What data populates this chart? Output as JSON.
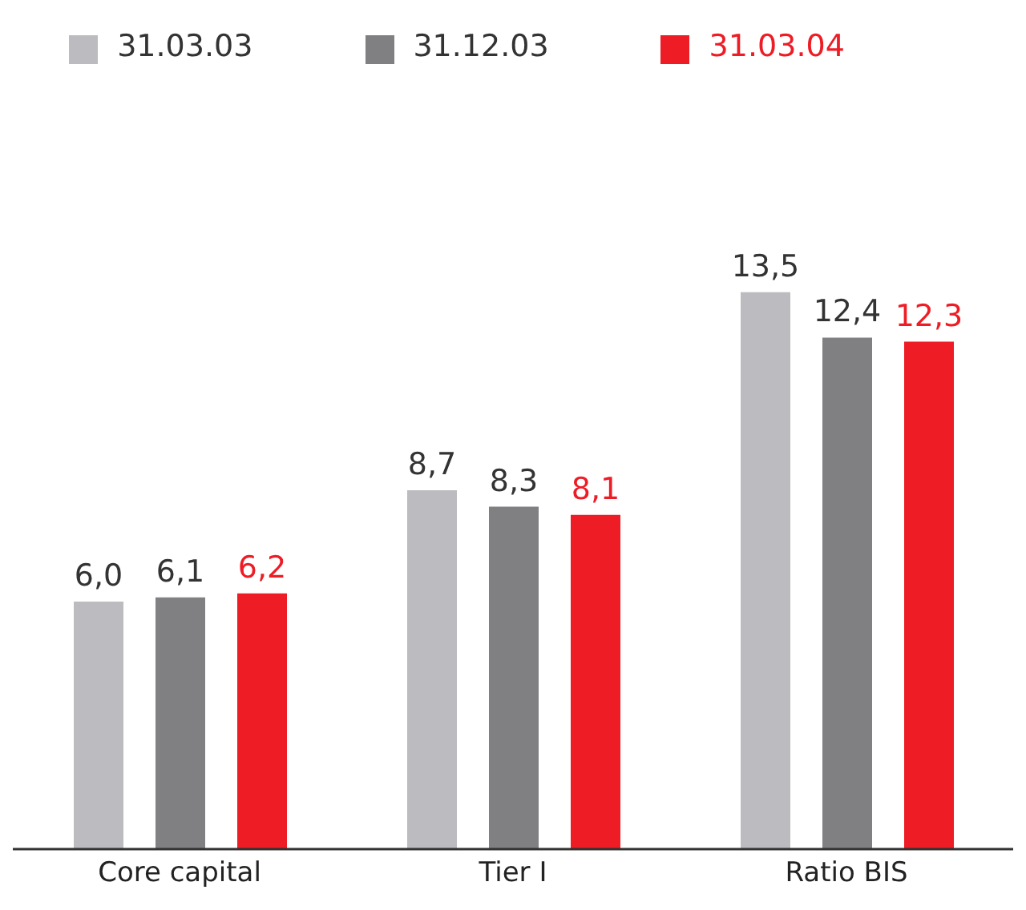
{
  "chart_data": {
    "type": "bar",
    "categories": [
      "Core capital",
      "Tier I",
      "Ratio BIS"
    ],
    "series": [
      {
        "name": "31.03.03",
        "color": "#bcbcc0",
        "values": [
          6.0,
          8.7,
          13.5
        ],
        "value_labels": [
          "6,0",
          "8,7",
          "13,5"
        ]
      },
      {
        "name": "31.12.03",
        "color": "#808083",
        "values": [
          6.1,
          8.3,
          12.4
        ],
        "value_labels": [
          "6,1",
          "8,3",
          "12,4"
        ]
      },
      {
        "name": "31.03.04",
        "color": "#ee1c25",
        "values": [
          6.2,
          8.1,
          12.3
        ],
        "value_labels": [
          "6,2",
          "8,1",
          "12,3"
        ]
      }
    ],
    "tick_labels": "x",
    "legend": "top",
    "grid": false
  }
}
